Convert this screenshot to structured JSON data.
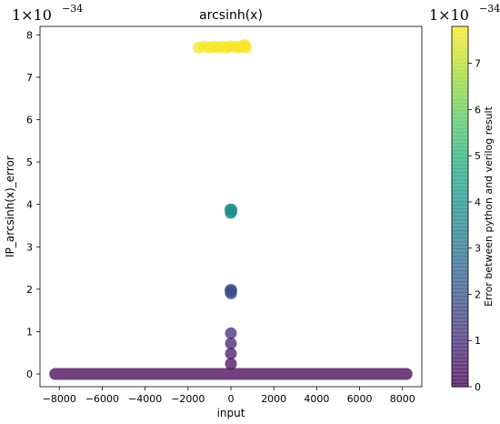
{
  "chart_data": [
    {
      "type": "scatter",
      "title": "arcsinh(x)",
      "xlabel": "input",
      "ylabel": "IP_arcsinh(x)_error",
      "y_multiplier": {
        "base": "1×10",
        "exponent": "−34"
      },
      "xlim": [
        -8900,
        8900
      ],
      "ylim": [
        -0.3,
        8.2
      ],
      "xticks": [
        -8000,
        -6000,
        -4000,
        -2000,
        0,
        2000,
        4000,
        6000,
        8000
      ],
      "xtick_labels": [
        "−8000",
        "−6000",
        "−4000",
        "−2000",
        "0",
        "2000",
        "4000",
        "6000",
        "8000"
      ],
      "yticks": [
        0,
        1,
        2,
        3,
        4,
        5,
        6,
        7,
        8
      ],
      "ytick_labels": [
        "0",
        "1",
        "2",
        "3",
        "4",
        "5",
        "6",
        "7",
        "8"
      ],
      "grid": false,
      "marker_alpha": 0.75,
      "colormap": "viridis",
      "band": {
        "x_from": -8192,
        "x_to": 8192,
        "y": 0
      },
      "points": [
        {
          "x": -1500,
          "y": 7.7
        },
        {
          "x": -1250,
          "y": 7.72
        },
        {
          "x": -1000,
          "y": 7.7
        },
        {
          "x": -800,
          "y": 7.72
        },
        {
          "x": -600,
          "y": 7.71
        },
        {
          "x": -400,
          "y": 7.72
        },
        {
          "x": -200,
          "y": 7.7
        },
        {
          "x": 0,
          "y": 7.73
        },
        {
          "x": 200,
          "y": 7.72
        },
        {
          "x": 350,
          "y": 7.71
        },
        {
          "x": 500,
          "y": 7.73
        },
        {
          "x": 650,
          "y": 7.76
        },
        {
          "x": 700,
          "y": 7.7
        },
        {
          "x": -30,
          "y": 3.88
        },
        {
          "x": 30,
          "y": 3.88
        },
        {
          "x": -10,
          "y": 3.8
        },
        {
          "x": 20,
          "y": 3.82
        },
        {
          "x": -20,
          "y": 1.98
        },
        {
          "x": 20,
          "y": 1.98
        },
        {
          "x": -10,
          "y": 1.93
        },
        {
          "x": 10,
          "y": 1.9
        },
        {
          "x": 0,
          "y": 0.96
        },
        {
          "x": 0,
          "y": 0.72
        },
        {
          "x": 0,
          "y": 0.48
        },
        {
          "x": 0,
          "y": 0.24
        }
      ]
    },
    {
      "type": "heatmap",
      "role": "colorbar",
      "ylabel": "Error between python and verilog result",
      "multiplier": {
        "base": "1×10",
        "exponent": "−34"
      },
      "range": [
        0,
        7.8
      ],
      "ticks": [
        0,
        1,
        2,
        3,
        4,
        5,
        6,
        7
      ],
      "tick_labels": [
        "0",
        "1",
        "2",
        "3",
        "4",
        "5",
        "6",
        "7"
      ],
      "colormap": "viridis",
      "alpha": 0.75
    }
  ]
}
